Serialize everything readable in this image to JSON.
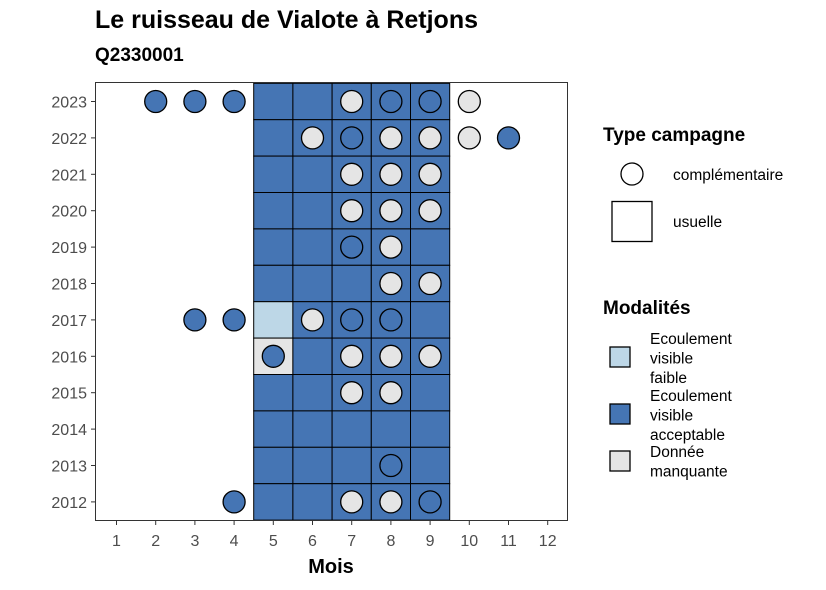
{
  "chart_data": {
    "type": "heatmap",
    "title": "Le ruisseau de Vialote à Retjons",
    "subtitle": "Q2330001",
    "xlabel": "Mois",
    "ylabel": "",
    "x_ticks": [
      "1",
      "2",
      "3",
      "4",
      "5",
      "6",
      "7",
      "8",
      "9",
      "10",
      "11",
      "12"
    ],
    "y_ticks": [
      "2023",
      "2022",
      "2021",
      "2020",
      "2019",
      "2018",
      "2017",
      "2016",
      "2015",
      "2014",
      "2013",
      "2012"
    ],
    "colors": {
      "Ecoulement visible faible": "#bdd7e7",
      "Ecoulement visible acceptable": "#4575b4",
      "Donnée manquante": "#e5e5e5"
    },
    "tiles": [
      {
        "year": 2023,
        "months": [
          5,
          6,
          7,
          8,
          9
        ],
        "modalite": [
          "Ecoulement visible acceptable",
          "Ecoulement visible acceptable",
          "Ecoulement visible acceptable",
          "Ecoulement visible acceptable",
          "Ecoulement visible acceptable"
        ]
      },
      {
        "year": 2022,
        "months": [
          5,
          6,
          7,
          8,
          9
        ],
        "modalite": [
          "Ecoulement visible acceptable",
          "Ecoulement visible acceptable",
          "Ecoulement visible acceptable",
          "Ecoulement visible acceptable",
          "Ecoulement visible acceptable"
        ]
      },
      {
        "year": 2021,
        "months": [
          5,
          6,
          7,
          8,
          9
        ],
        "modalite": [
          "Ecoulement visible acceptable",
          "Ecoulement visible acceptable",
          "Ecoulement visible acceptable",
          "Ecoulement visible acceptable",
          "Ecoulement visible acceptable"
        ]
      },
      {
        "year": 2020,
        "months": [
          5,
          6,
          7,
          8,
          9
        ],
        "modalite": [
          "Ecoulement visible acceptable",
          "Ecoulement visible acceptable",
          "Ecoulement visible acceptable",
          "Ecoulement visible acceptable",
          "Ecoulement visible acceptable"
        ]
      },
      {
        "year": 2019,
        "months": [
          5,
          6,
          7,
          8,
          9
        ],
        "modalite": [
          "Ecoulement visible acceptable",
          "Ecoulement visible acceptable",
          "Ecoulement visible acceptable",
          "Ecoulement visible acceptable",
          "Ecoulement visible acceptable"
        ]
      },
      {
        "year": 2018,
        "months": [
          5,
          6,
          7,
          8,
          9
        ],
        "modalite": [
          "Ecoulement visible acceptable",
          "Ecoulement visible acceptable",
          "Ecoulement visible acceptable",
          "Ecoulement visible acceptable",
          "Ecoulement visible acceptable"
        ]
      },
      {
        "year": 2017,
        "months": [
          5,
          6,
          7,
          8,
          9
        ],
        "modalite": [
          "Ecoulement visible faible",
          "Ecoulement visible acceptable",
          "Ecoulement visible acceptable",
          "Ecoulement visible acceptable",
          "Ecoulement visible acceptable"
        ]
      },
      {
        "year": 2016,
        "months": [
          5,
          6,
          7,
          8,
          9
        ],
        "modalite": [
          "Donnée manquante",
          "Ecoulement visible acceptable",
          "Ecoulement visible acceptable",
          "Ecoulement visible acceptable",
          "Ecoulement visible acceptable"
        ]
      },
      {
        "year": 2015,
        "months": [
          5,
          6,
          7,
          8,
          9
        ],
        "modalite": [
          "Ecoulement visible acceptable",
          "Ecoulement visible acceptable",
          "Ecoulement visible acceptable",
          "Ecoulement visible acceptable",
          "Ecoulement visible acceptable"
        ]
      },
      {
        "year": 2014,
        "months": [
          5,
          6,
          7,
          8,
          9
        ],
        "modalite": [
          "Ecoulement visible acceptable",
          "Ecoulement visible acceptable",
          "Ecoulement visible acceptable",
          "Ecoulement visible acceptable",
          "Ecoulement visible acceptable"
        ]
      },
      {
        "year": 2013,
        "months": [
          5,
          6,
          7,
          8,
          9
        ],
        "modalite": [
          "Ecoulement visible acceptable",
          "Ecoulement visible acceptable",
          "Ecoulement visible acceptable",
          "Ecoulement visible acceptable",
          "Ecoulement visible acceptable"
        ]
      },
      {
        "year": 2012,
        "months": [
          5,
          6,
          7,
          8,
          9
        ],
        "modalite": [
          "Ecoulement visible acceptable",
          "Ecoulement visible acceptable",
          "Ecoulement visible acceptable",
          "Ecoulement visible acceptable",
          "Ecoulement visible acceptable"
        ]
      }
    ],
    "points": [
      {
        "year": 2023,
        "month": 2,
        "modalite": "Ecoulement visible acceptable"
      },
      {
        "year": 2023,
        "month": 3,
        "modalite": "Ecoulement visible acceptable"
      },
      {
        "year": 2023,
        "month": 4,
        "modalite": "Ecoulement visible acceptable"
      },
      {
        "year": 2023,
        "month": 7,
        "modalite": "Donnée manquante"
      },
      {
        "year": 2023,
        "month": 8,
        "modalite": "Ecoulement visible acceptable"
      },
      {
        "year": 2023,
        "month": 9,
        "modalite": "Ecoulement visible acceptable"
      },
      {
        "year": 2023,
        "month": 10,
        "modalite": "Donnée manquante"
      },
      {
        "year": 2022,
        "month": 6,
        "modalite": "Donnée manquante"
      },
      {
        "year": 2022,
        "month": 7,
        "modalite": "Ecoulement visible acceptable"
      },
      {
        "year": 2022,
        "month": 8,
        "modalite": "Donnée manquante"
      },
      {
        "year": 2022,
        "month": 9,
        "modalite": "Donnée manquante"
      },
      {
        "year": 2022,
        "month": 10,
        "modalite": "Donnée manquante"
      },
      {
        "year": 2022,
        "month": 11,
        "modalite": "Ecoulement visible acceptable"
      },
      {
        "year": 2021,
        "month": 7,
        "modalite": "Donnée manquante"
      },
      {
        "year": 2021,
        "month": 8,
        "modalite": "Donnée manquante"
      },
      {
        "year": 2021,
        "month": 9,
        "modalite": "Donnée manquante"
      },
      {
        "year": 2020,
        "month": 7,
        "modalite": "Donnée manquante"
      },
      {
        "year": 2020,
        "month": 8,
        "modalite": "Donnée manquante"
      },
      {
        "year": 2020,
        "month": 9,
        "modalite": "Donnée manquante"
      },
      {
        "year": 2019,
        "month": 7,
        "modalite": "Ecoulement visible acceptable"
      },
      {
        "year": 2019,
        "month": 8,
        "modalite": "Donnée manquante"
      },
      {
        "year": 2018,
        "month": 8,
        "modalite": "Donnée manquante"
      },
      {
        "year": 2018,
        "month": 9,
        "modalite": "Donnée manquante"
      },
      {
        "year": 2017,
        "month": 3,
        "modalite": "Ecoulement visible acceptable"
      },
      {
        "year": 2017,
        "month": 4,
        "modalite": "Ecoulement visible acceptable"
      },
      {
        "year": 2017,
        "month": 6,
        "modalite": "Donnée manquante"
      },
      {
        "year": 2017,
        "month": 7,
        "modalite": "Ecoulement visible acceptable"
      },
      {
        "year": 2017,
        "month": 8,
        "modalite": "Ecoulement visible acceptable"
      },
      {
        "year": 2016,
        "month": 5,
        "modalite": "Ecoulement visible acceptable"
      },
      {
        "year": 2016,
        "month": 7,
        "modalite": "Donnée manquante"
      },
      {
        "year": 2016,
        "month": 8,
        "modalite": "Donnée manquante"
      },
      {
        "year": 2016,
        "month": 9,
        "modalite": "Donnée manquante"
      },
      {
        "year": 2015,
        "month": 7,
        "modalite": "Donnée manquante"
      },
      {
        "year": 2015,
        "month": 8,
        "modalite": "Donnée manquante"
      },
      {
        "year": 2013,
        "month": 8,
        "modalite": "Ecoulement visible acceptable"
      },
      {
        "year": 2012,
        "month": 4,
        "modalite": "Ecoulement visible acceptable"
      },
      {
        "year": 2012,
        "month": 7,
        "modalite": "Donnée manquante"
      },
      {
        "year": 2012,
        "month": 8,
        "modalite": "Donnée manquante"
      },
      {
        "year": 2012,
        "month": 9,
        "modalite": "Ecoulement visible acceptable"
      }
    ],
    "legend": {
      "shape_title": "Type campagne",
      "shape_items": [
        {
          "label": "complémentaire",
          "shape": "circle"
        },
        {
          "label": "usuelle",
          "shape": "square"
        }
      ],
      "fill_title": "Modalités",
      "fill_items": [
        {
          "lines": [
            "Ecoulement",
            "visible",
            "faible"
          ],
          "color": "#bdd7e7"
        },
        {
          "lines": [
            "Ecoulement",
            "visible",
            "acceptable"
          ],
          "color": "#4575b4"
        },
        {
          "lines": [
            "Donnée",
            "manquante"
          ],
          "color": "#e5e5e5"
        }
      ],
      "placement": "right"
    }
  }
}
